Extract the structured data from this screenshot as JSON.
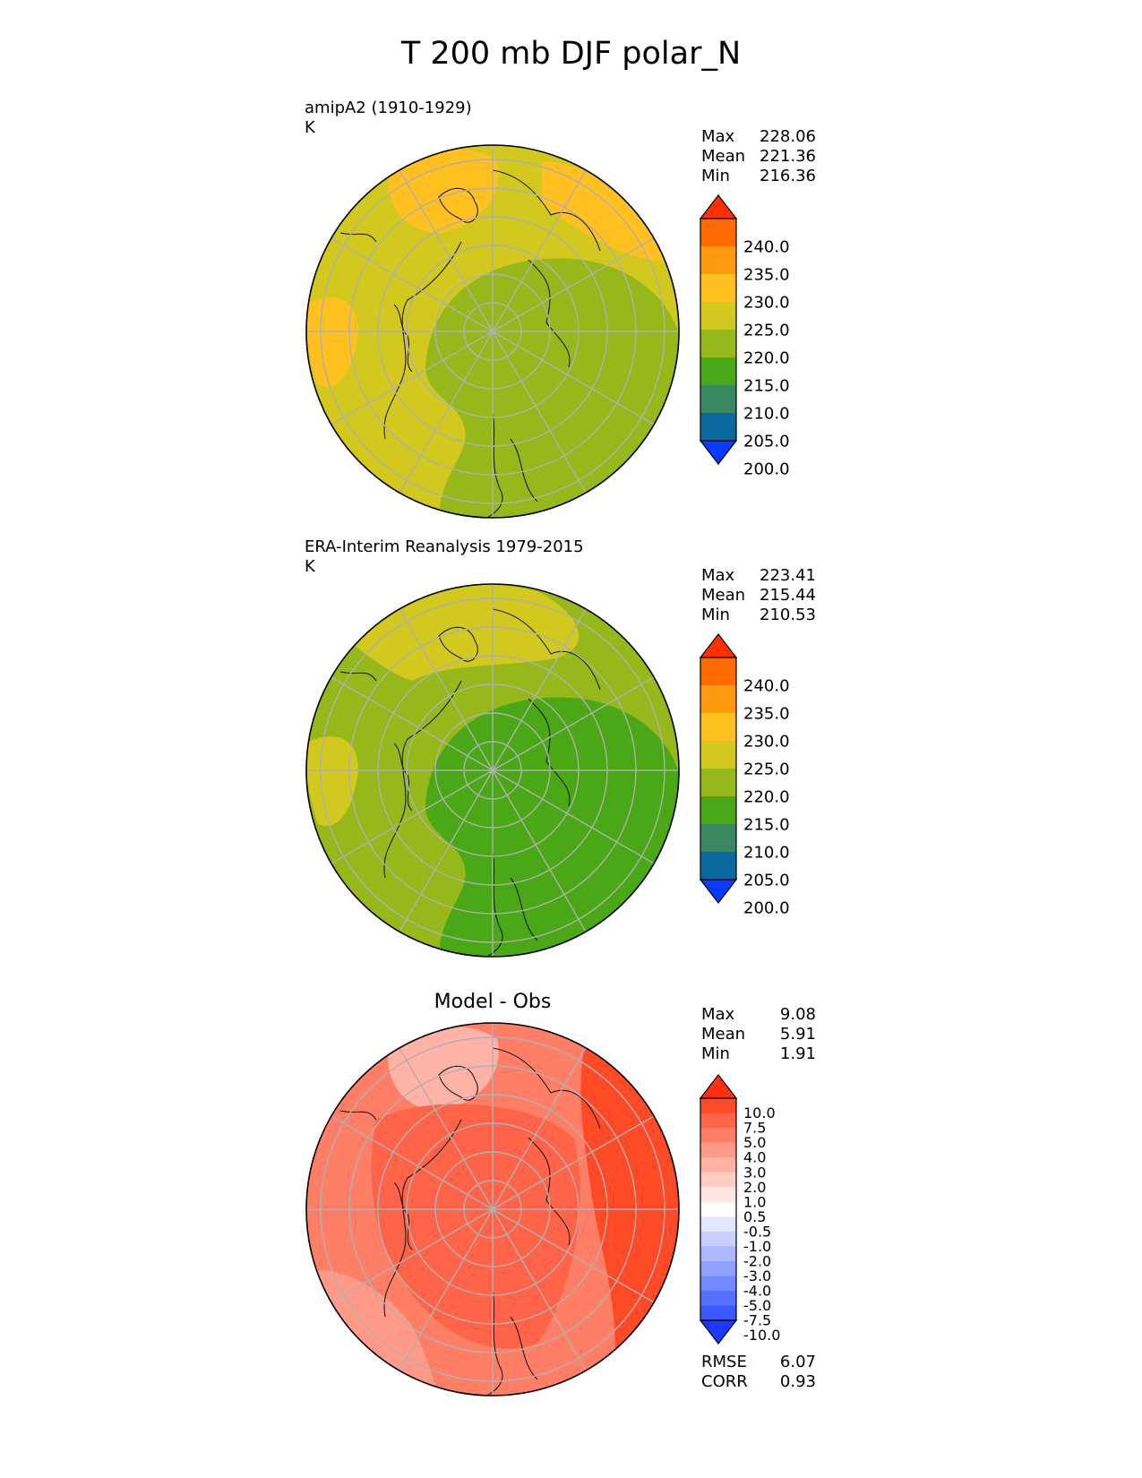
{
  "title": "T 200 mb DJF polar_N",
  "chart_data": [
    {
      "type": "heatmap",
      "projection": "north-polar-stereographic",
      "title": "amipA2 (1910-1929)",
      "units": "K",
      "stats": {
        "max_label": "Max",
        "max": "228.06",
        "mean_label": "Mean",
        "mean": "221.36",
        "min_label": "Min",
        "min": "216.36"
      },
      "colorbar": {
        "levels": [
          "240.0",
          "235.0",
          "230.0",
          "225.0",
          "220.0",
          "215.0",
          "210.0",
          "205.0",
          "200.0"
        ],
        "colors": [
          "#ff3000",
          "#ff6a00",
          "#ff9a10",
          "#ffc020",
          "#d2c81e",
          "#96b81a",
          "#4aa816",
          "#3a8860",
          "#0a6aa0",
          "#0a3aff"
        ],
        "extend": "both"
      },
      "field": {
        "background": "#d2c81e",
        "regions": [
          {
            "level": "225.0",
            "color": "#ffc020",
            "area": "upper-left"
          },
          {
            "level": "225.0",
            "color": "#ffc020",
            "area": "upper-right"
          },
          {
            "level": "225.0",
            "color": "#ffc020",
            "area": "left"
          },
          {
            "level": "215.0",
            "color": "#96b81a",
            "area": "center-right"
          }
        ]
      }
    },
    {
      "type": "heatmap",
      "projection": "north-polar-stereographic",
      "title": "ERA-Interim Reanalysis 1979-2015",
      "units": "K",
      "stats": {
        "max_label": "Max",
        "max": "223.41",
        "mean_label": "Mean",
        "mean": "215.44",
        "min_label": "Min",
        "min": "210.53"
      },
      "colorbar": {
        "levels": [
          "240.0",
          "235.0",
          "230.0",
          "225.0",
          "220.0",
          "215.0",
          "210.0",
          "205.0",
          "200.0"
        ],
        "colors": [
          "#ff3000",
          "#ff6a00",
          "#ff9a10",
          "#ffc020",
          "#d2c81e",
          "#96b81a",
          "#4aa816",
          "#3a8860",
          "#0a6aa0",
          "#0a3aff"
        ],
        "extend": "both"
      },
      "field": {
        "background": "#96b81a",
        "regions": [
          {
            "level": "220.0",
            "color": "#d2c81e",
            "area": "top"
          },
          {
            "level": "220.0",
            "color": "#d2c81e",
            "area": "left"
          },
          {
            "level": "210.0",
            "color": "#4aa816",
            "area": "center-right"
          }
        ]
      }
    },
    {
      "type": "heatmap",
      "projection": "north-polar-stereographic",
      "title": "Model - Obs",
      "stats": {
        "max_label": "Max",
        "max": "9.08",
        "mean_label": "Mean",
        "mean": "5.91",
        "min_label": "Min",
        "min": "1.91",
        "rmse_label": "RMSE",
        "rmse": "6.07",
        "corr_label": "CORR",
        "corr": "0.93"
      },
      "colorbar": {
        "levels": [
          "10.0",
          "7.5",
          "5.0",
          "4.0",
          "3.0",
          "2.0",
          "1.0",
          "0.5",
          "-0.5",
          "-1.0",
          "-2.0",
          "-3.0",
          "-4.0",
          "-5.0",
          "-7.5",
          "-10.0"
        ],
        "colors": [
          "#ff3010",
          "#ff4a28",
          "#ff6448",
          "#ff7e66",
          "#ff9a88",
          "#ffb2a6",
          "#ffccc4",
          "#ffe6e2",
          "#ffffff",
          "#e4e8ff",
          "#c8d0ff",
          "#acb8ff",
          "#90a0ff",
          "#7488ff",
          "#5870ff",
          "#3c58ff",
          "#1a3aff"
        ],
        "extend": "both"
      },
      "field": {
        "background": "#ff7e66",
        "regions": [
          {
            "level": "3.0",
            "color": "#ffb2a6",
            "area": "upper-left"
          },
          {
            "level": "4.0",
            "color": "#ff9a88",
            "area": "lower-left"
          },
          {
            "level": "5.0",
            "color": "#ff6448",
            "area": "center"
          },
          {
            "level": "7.5",
            "color": "#ff4a28",
            "area": "right"
          }
        ]
      }
    }
  ]
}
